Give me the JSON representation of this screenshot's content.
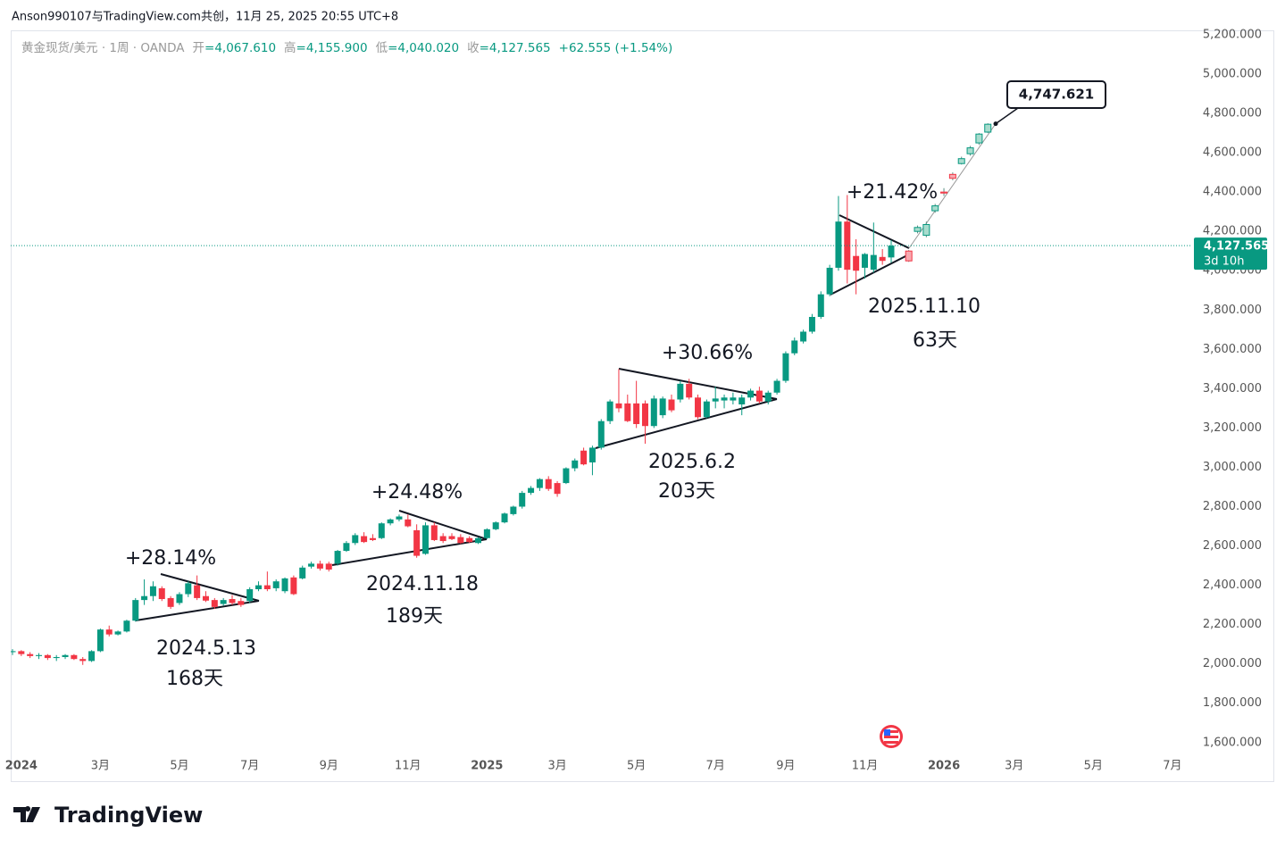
{
  "credit": "Anson990107与TradingView.com共创，11月 25, 2025 20:55 UTC+8",
  "brand": "TradingView",
  "chart_data": {
    "type": "candlestick",
    "header": {
      "symbol": "黄金现货/美元 · 1周 · OANDA",
      "stats": [
        {
          "label": "开",
          "value": "=4,067.610"
        },
        {
          "label": "高",
          "value": "=4,155.900"
        },
        {
          "label": "低",
          "value": "=4,040.020"
        },
        {
          "label": "收",
          "value": "=4,127.565"
        }
      ],
      "change": "+62.555 (+1.54%)"
    },
    "up_color": "#089981",
    "down_color": "#f23645",
    "projection_up_color": "#a8dccd",
    "projection_down_color": "#f7a9b0",
    "ylim": [
      1540,
      5218
    ],
    "yticks": [
      {
        "value": 1600,
        "label": "1,600.000"
      },
      {
        "value": 1800,
        "label": "1,800.000"
      },
      {
        "value": 2000,
        "label": "2,000.000"
      },
      {
        "value": 2200,
        "label": "2,200.000"
      },
      {
        "value": 2400,
        "label": "2,400.000"
      },
      {
        "value": 2600,
        "label": "2,600.000"
      },
      {
        "value": 2800,
        "label": "2,800.000"
      },
      {
        "value": 3000,
        "label": "3,000.000"
      },
      {
        "value": 3200,
        "label": "3,200.000"
      },
      {
        "value": 3400,
        "label": "3,400.000"
      },
      {
        "value": 3600,
        "label": "3,600.000"
      },
      {
        "value": 3800,
        "label": "3,800.000"
      },
      {
        "value": 4000,
        "label": "4,000.000"
      },
      {
        "value": 4200,
        "label": "4,200.000"
      },
      {
        "value": 4400,
        "label": "4,400.000"
      },
      {
        "value": 4600,
        "label": "4,600.000"
      },
      {
        "value": 4800,
        "label": "4,800.000"
      },
      {
        "value": 5000,
        "label": "5,000.000"
      },
      {
        "value": 5200,
        "label": "5,200.000"
      }
    ],
    "last_price": {
      "value": 4127.565,
      "label": "4,127.565",
      "countdown": "3d 10h"
    },
    "callout": {
      "value": 4747.621,
      "label": "4,747.621"
    },
    "annotations": [
      "+28.14%",
      "2024.5.13",
      "168天",
      "+24.48%",
      "2024.11.18",
      "189天",
      "+30.66%",
      "2025.6.2",
      "203天",
      "+21.42%",
      "2025.11.10",
      "63天"
    ],
    "categories": [
      null,
      "2024",
      null,
      null,
      null,
      null,
      null,
      null,
      null,
      null,
      "3月",
      null,
      null,
      null,
      null,
      null,
      null,
      null,
      null,
      "5月",
      null,
      null,
      null,
      null,
      null,
      null,
      null,
      "7月",
      null,
      null,
      null,
      null,
      null,
      null,
      null,
      null,
      "9月",
      null,
      null,
      null,
      null,
      null,
      null,
      null,
      null,
      "11月",
      null,
      null,
      null,
      null,
      null,
      null,
      null,
      null,
      "2025",
      null,
      null,
      null,
      null,
      null,
      null,
      null,
      "3月",
      null,
      null,
      null,
      null,
      null,
      null,
      null,
      null,
      "5月",
      null,
      null,
      null,
      null,
      null,
      null,
      null,
      null,
      "7月",
      null,
      null,
      null,
      null,
      null,
      null,
      null,
      "9月",
      null,
      null,
      null,
      null,
      null,
      null,
      null,
      null,
      "11月",
      null,
      null,
      null,
      null,
      null,
      null,
      null,
      null,
      "2026",
      null,
      null,
      null,
      null,
      null,
      null,
      null,
      "3月",
      null,
      null,
      null,
      null,
      null,
      null,
      null,
      null,
      "5月",
      null,
      null,
      null,
      null,
      null,
      null,
      null,
      null,
      "7月",
      null,
      null
    ],
    "ohlc": [
      [
        2060,
        2075,
        2045,
        2065
      ],
      [
        2065,
        2070,
        2040,
        2050
      ],
      [
        2050,
        2060,
        2030,
        2040
      ],
      [
        2040,
        2055,
        2025,
        2045
      ],
      [
        2045,
        2050,
        2020,
        2030
      ],
      [
        2030,
        2045,
        2015,
        2035
      ],
      [
        2035,
        2050,
        2025,
        2045
      ],
      [
        2045,
        2050,
        2020,
        2025
      ],
      [
        2025,
        2035,
        1995,
        2015
      ],
      [
        2015,
        2070,
        2010,
        2065
      ],
      [
        2065,
        2180,
        2060,
        2175
      ],
      [
        2175,
        2195,
        2140,
        2150
      ],
      [
        2150,
        2170,
        2145,
        2165
      ],
      [
        2165,
        2225,
        2160,
        2220
      ],
      [
        2220,
        2335,
        2215,
        2325
      ],
      [
        2325,
        2430,
        2300,
        2345
      ],
      [
        2345,
        2420,
        2320,
        2395
      ],
      [
        2385,
        2395,
        2320,
        2330
      ],
      [
        2335,
        2345,
        2280,
        2290
      ],
      [
        2310,
        2365,
        2300,
        2355
      ],
      [
        2355,
        2420,
        2340,
        2410
      ],
      [
        2400,
        2450,
        2325,
        2335
      ],
      [
        2345,
        2370,
        2315,
        2322
      ],
      [
        2325,
        2335,
        2280,
        2290
      ],
      [
        2305,
        2335,
        2295,
        2325
      ],
      [
        2330,
        2350,
        2300,
        2310
      ],
      [
        2320,
        2335,
        2290,
        2300
      ],
      [
        2320,
        2390,
        2310,
        2380
      ],
      [
        2380,
        2420,
        2370,
        2400
      ],
      [
        2400,
        2470,
        2370,
        2380
      ],
      [
        2385,
        2430,
        2370,
        2420
      ],
      [
        2370,
        2440,
        2360,
        2435
      ],
      [
        2440,
        2450,
        2350,
        2355
      ],
      [
        2435,
        2500,
        2430,
        2490
      ],
      [
        2495,
        2520,
        2485,
        2510
      ],
      [
        2510,
        2525,
        2475,
        2485
      ],
      [
        2510,
        2520,
        2470,
        2480
      ],
      [
        2510,
        2580,
        2500,
        2575
      ],
      [
        2575,
        2625,
        2570,
        2615
      ],
      [
        2615,
        2665,
        2605,
        2655
      ],
      [
        2650,
        2670,
        2615,
        2620
      ],
      [
        2640,
        2660,
        2625,
        2630
      ],
      [
        2640,
        2720,
        2635,
        2715
      ],
      [
        2715,
        2740,
        2705,
        2735
      ],
      [
        2735,
        2760,
        2725,
        2750
      ],
      [
        2735,
        2760,
        2695,
        2700
      ],
      [
        2680,
        2710,
        2540,
        2550
      ],
      [
        2560,
        2720,
        2555,
        2705
      ],
      [
        2705,
        2720,
        2625,
        2630
      ],
      [
        2650,
        2665,
        2615,
        2625
      ],
      [
        2650,
        2665,
        2630,
        2635
      ],
      [
        2645,
        2660,
        2610,
        2615
      ],
      [
        2640,
        2650,
        2615,
        2620
      ],
      [
        2615,
        2645,
        2610,
        2640
      ],
      [
        2640,
        2690,
        2635,
        2685
      ],
      [
        2685,
        2725,
        2680,
        2720
      ],
      [
        2720,
        2770,
        2715,
        2765
      ],
      [
        2762,
        2805,
        2755,
        2800
      ],
      [
        2800,
        2880,
        2790,
        2870
      ],
      [
        2870,
        2905,
        2860,
        2895
      ],
      [
        2895,
        2945,
        2880,
        2940
      ],
      [
        2940,
        2955,
        2880,
        2890
      ],
      [
        2920,
        2930,
        2850,
        2865
      ],
      [
        2920,
        3000,
        2915,
        2995
      ],
      [
        2995,
        3045,
        2980,
        3035
      ],
      [
        3085,
        3100,
        3010,
        3015
      ],
      [
        3025,
        3110,
        2960,
        3100
      ],
      [
        3100,
        3245,
        3090,
        3235
      ],
      [
        3235,
        3345,
        3220,
        3335
      ],
      [
        3325,
        3500,
        3280,
        3300
      ],
      [
        3325,
        3370,
        3230,
        3235
      ],
      [
        3325,
        3440,
        3200,
        3220
      ],
      [
        3325,
        3340,
        3120,
        3210
      ],
      [
        3210,
        3365,
        3200,
        3350
      ],
      [
        3265,
        3360,
        3250,
        3350
      ],
      [
        3345,
        3370,
        3280,
        3290
      ],
      [
        3345,
        3440,
        3330,
        3425
      ],
      [
        3425,
        3450,
        3345,
        3355
      ],
      [
        3355,
        3370,
        3245,
        3255
      ],
      [
        3255,
        3345,
        3250,
        3335
      ],
      [
        3335,
        3410,
        3300,
        3350
      ],
      [
        3340,
        3370,
        3300,
        3355
      ],
      [
        3340,
        3380,
        3320,
        3355
      ],
      [
        3320,
        3370,
        3265,
        3355
      ],
      [
        3355,
        3400,
        3340,
        3390
      ],
      [
        3390,
        3410,
        3325,
        3335
      ],
      [
        3335,
        3390,
        3320,
        3380
      ],
      [
        3380,
        3450,
        3370,
        3440
      ],
      [
        3440,
        3590,
        3430,
        3580
      ],
      [
        3580,
        3660,
        3570,
        3645
      ],
      [
        3640,
        3700,
        3630,
        3690
      ],
      [
        3690,
        3780,
        3680,
        3765
      ],
      [
        3765,
        3895,
        3755,
        3880
      ],
      [
        3880,
        4030,
        3870,
        4015
      ],
      [
        4015,
        4380,
        4000,
        4250
      ],
      [
        4250,
        4385,
        3935,
        4005
      ],
      [
        4075,
        4160,
        3880,
        4000
      ],
      [
        4015,
        4090,
        3960,
        4085
      ],
      [
        4005,
        4245,
        3990,
        4080
      ],
      [
        4070,
        4110,
        4030,
        4050
      ],
      [
        4067.61,
        4155.9,
        4040.02,
        4127.565
      ],
      null,
      null,
      null,
      null,
      null,
      null,
      null,
      null,
      null,
      null,
      null,
      null,
      null,
      null,
      null,
      null,
      null,
      null,
      null,
      null,
      null,
      null,
      null,
      null,
      null,
      null,
      null,
      null,
      null,
      null,
      null,
      null,
      null,
      null
    ],
    "projection_ohlc": [
      null,
      null,
      null,
      null,
      null,
      null,
      null,
      null,
      null,
      null,
      null,
      null,
      null,
      null,
      null,
      null,
      null,
      null,
      null,
      null,
      null,
      null,
      null,
      null,
      null,
      null,
      null,
      null,
      null,
      null,
      null,
      null,
      null,
      null,
      null,
      null,
      null,
      null,
      null,
      null,
      null,
      null,
      null,
      null,
      null,
      null,
      null,
      null,
      null,
      null,
      null,
      null,
      null,
      null,
      null,
      null,
      null,
      null,
      null,
      null,
      null,
      null,
      null,
      null,
      null,
      null,
      null,
      null,
      null,
      null,
      null,
      null,
      null,
      null,
      null,
      null,
      null,
      null,
      null,
      null,
      null,
      null,
      null,
      null,
      null,
      null,
      null,
      null,
      null,
      null,
      null,
      null,
      null,
      null,
      null,
      null,
      null,
      null,
      null,
      null,
      null,
      null,
      [
        4100,
        4105,
        4045,
        4050
      ],
      [
        4200,
        4230,
        4190,
        4220
      ],
      [
        4180,
        4250,
        4170,
        4235
      ],
      [
        4305,
        4340,
        4295,
        4330
      ],
      [
        4400,
        4420,
        4380,
        4395
      ],
      [
        4490,
        4500,
        4460,
        4470
      ],
      [
        4545,
        4580,
        4540,
        4570
      ],
      [
        4595,
        4635,
        4585,
        4625
      ],
      [
        4650,
        4700,
        4640,
        4695
      ],
      [
        4705,
        4750,
        4700,
        4745
      ],
      null,
      null,
      null,
      null,
      null,
      null,
      null,
      null,
      null,
      null,
      null,
      null,
      null,
      null,
      null,
      null,
      null,
      null,
      null,
      null,
      null,
      null,
      null
    ]
  }
}
